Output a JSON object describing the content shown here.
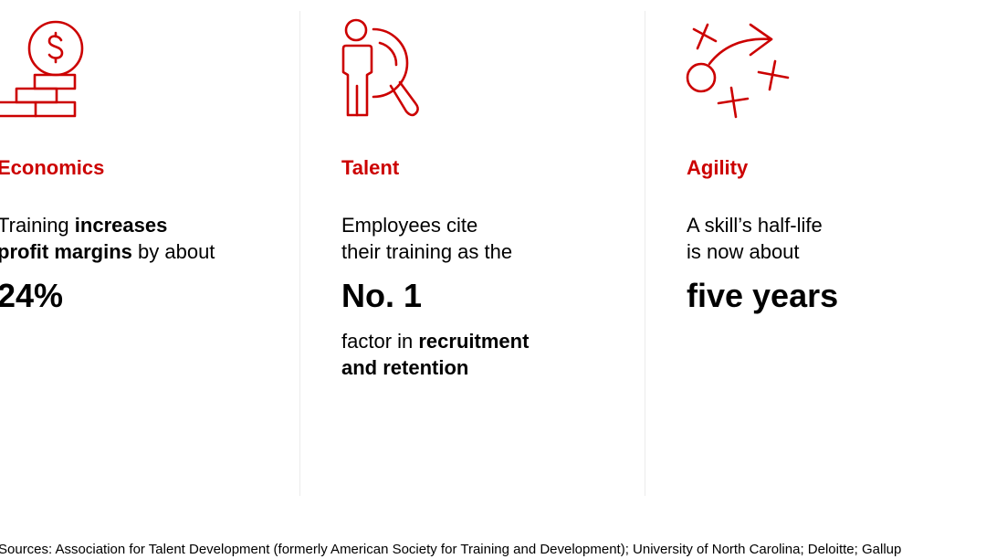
{
  "accent_color": "#cc0000",
  "columns": [
    {
      "icon": "coin-on-bricks-icon",
      "heading": "Economics",
      "line1": [
        "Training ",
        "increases"
      ],
      "line2": [
        "profit margins",
        " by about"
      ],
      "big": "24%"
    },
    {
      "icon": "person-magnifier-icon",
      "heading": "Talent",
      "line1": "Employees cite",
      "line2": "their training as the",
      "big": "No. 1",
      "line3": [
        "factor in ",
        "recruitment"
      ],
      "line4": "and retention"
    },
    {
      "icon": "strategy-play-icon",
      "heading": "Agility",
      "line1": "A skill’s half-life",
      "line2": "is now about",
      "big": "five years"
    }
  ],
  "sources": "Sources: Association for Talent Development (formerly American Society for Training and Development); University of North Carolina; Deloitte; Gallup"
}
